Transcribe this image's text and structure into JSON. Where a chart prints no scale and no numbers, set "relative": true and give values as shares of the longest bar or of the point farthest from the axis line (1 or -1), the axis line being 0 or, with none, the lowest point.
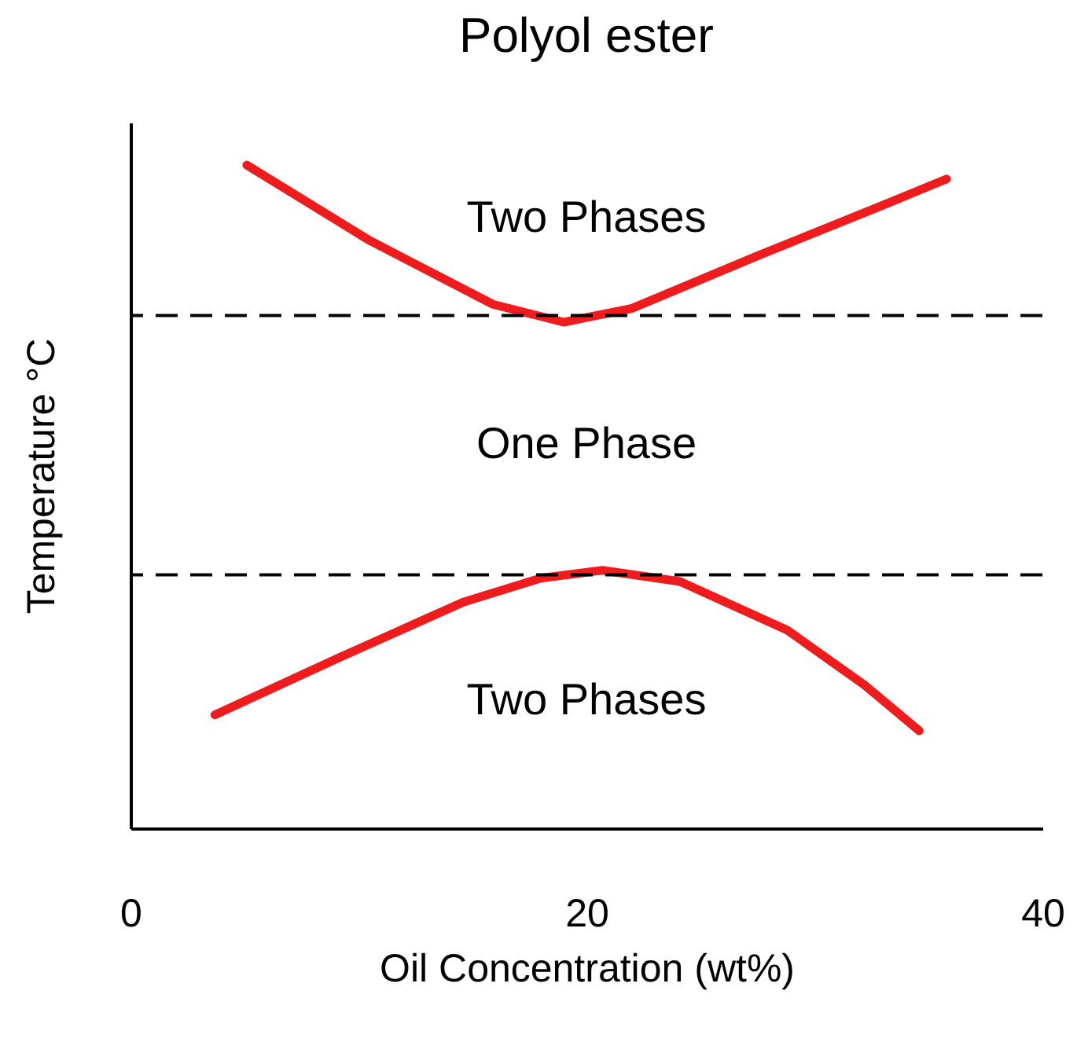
{
  "chart_data": {
    "type": "line",
    "title": "Polyol ester",
    "xlabel": "Oil Concentration  (wt%)",
    "ylabel": "Temperature °C",
    "relative": true,
    "xlim": [
      0,
      40
    ],
    "xticks": [
      0,
      20,
      40
    ],
    "grid": false,
    "marker": "none",
    "line_style": "solid",
    "series": [
      {
        "color": "#ee1c1c",
        "x": [
          5.1,
          10.5,
          15.9,
          19.0,
          22.0,
          27.5,
          32.9,
          35.8
        ],
        "values": [
          1.0,
          0.886,
          0.79,
          0.763,
          0.784,
          0.863,
          0.938,
          0.979
        ]
      },
      {
        "color": "#ee1c1c",
        "x": [
          3.7,
          9.2,
          14.6,
          18.0,
          20.7,
          24.1,
          28.8,
          32.2,
          34.6
        ],
        "values": [
          0.171,
          0.258,
          0.341,
          0.377,
          0.389,
          0.372,
          0.299,
          0.216,
          0.147
        ]
      }
    ],
    "ref_lines": [
      {
        "axis": "y",
        "value": 0.773,
        "color": "#000000",
        "line_style": "dashed"
      },
      {
        "axis": "y",
        "value": 0.382,
        "color": "#000000",
        "line_style": "dashed"
      }
    ],
    "annotations": [
      "Two Phases",
      "One Phase",
      "Two Phases"
    ]
  }
}
